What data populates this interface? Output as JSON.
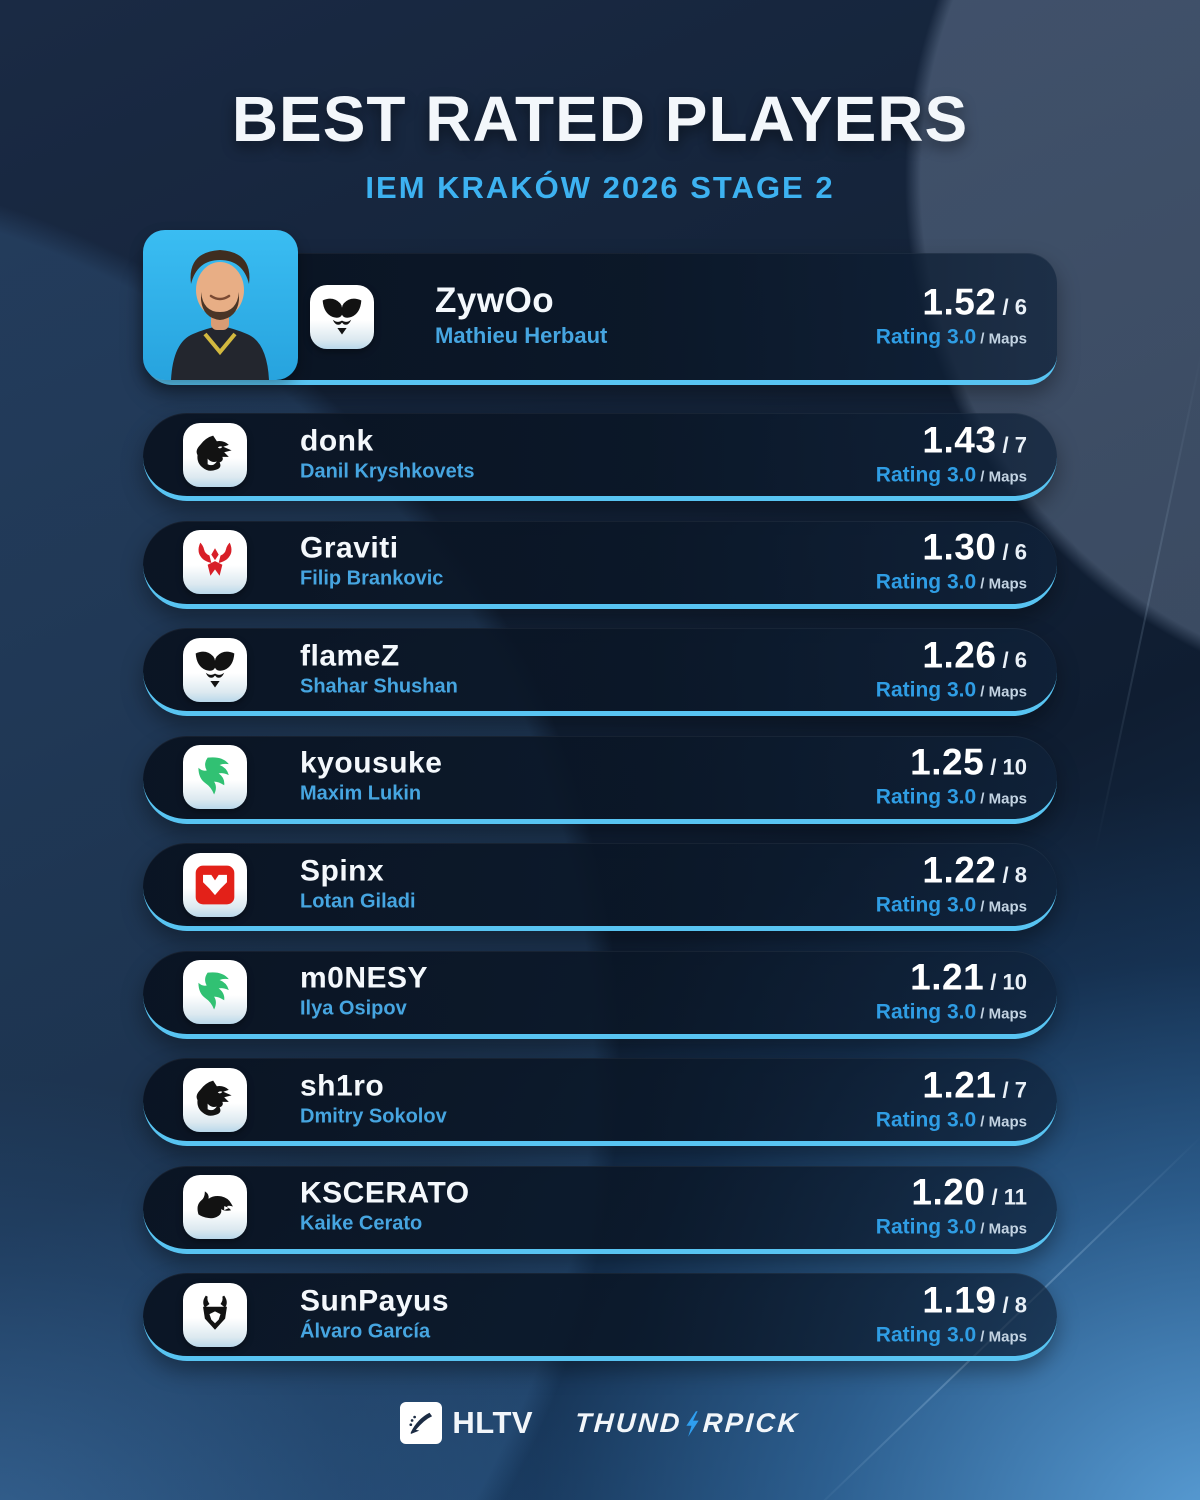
{
  "header": {
    "title": "BEST RATED PLAYERS",
    "subtitle": "IEM KRAKÓW 2026 STAGE 2"
  },
  "labels": {
    "rating_scale": "Rating 3.0",
    "maps_label": "Maps",
    "separator": "/"
  },
  "players": [
    {
      "featured": true,
      "nickname": "ZywOo",
      "realname": "Mathieu Herbaut",
      "rating": "1.52",
      "maps": "6",
      "team_icon": "vitality-logo"
    },
    {
      "featured": false,
      "nickname": "donk",
      "realname": "Danil Kryshkovets",
      "rating": "1.43",
      "maps": "7",
      "team_icon": "spirit-logo"
    },
    {
      "featured": false,
      "nickname": "Graviti",
      "realname": "Filip Brankovic",
      "rating": "1.30",
      "maps": "6",
      "team_icon": "red-demon-logo"
    },
    {
      "featured": false,
      "nickname": "flameZ",
      "realname": "Shahar Shushan",
      "rating": "1.26",
      "maps": "6",
      "team_icon": "vitality-logo"
    },
    {
      "featured": false,
      "nickname": "kyousuke",
      "realname": "Maxim Lukin",
      "rating": "1.25",
      "maps": "10",
      "team_icon": "falcons-logo"
    },
    {
      "featured": false,
      "nickname": "Spinx",
      "realname": "Lotan Giladi",
      "rating": "1.22",
      "maps": "8",
      "team_icon": "mouz-logo"
    },
    {
      "featured": false,
      "nickname": "m0NESY",
      "realname": "Ilya Osipov",
      "rating": "1.21",
      "maps": "10",
      "team_icon": "falcons-logo"
    },
    {
      "featured": false,
      "nickname": "sh1ro",
      "realname": "Dmitry Sokolov",
      "rating": "1.21",
      "maps": "7",
      "team_icon": "spirit-logo"
    },
    {
      "featured": false,
      "nickname": "KSCERATO",
      "realname": "Kaike Cerato",
      "rating": "1.20",
      "maps": "11",
      "team_icon": "furia-logo"
    },
    {
      "featured": false,
      "nickname": "SunPayus",
      "realname": "Álvaro García",
      "rating": "1.19",
      "maps": "8",
      "team_icon": "g2-logo"
    }
  ],
  "footer": {
    "hltv_label": "HLTV",
    "thunderpick_part1": "THUND",
    "thunderpick_part2": "RPICK",
    "thunderpick_full": "THUNDERPICK"
  },
  "colors": {
    "subtitle_blue": "#3db2f1",
    "realname_blue": "#46a5e0",
    "rating_label_blue": "#2f9de4",
    "row_underline_cyan": "#58c4f2",
    "photo_background_blue": "#2fb0e8",
    "falcons_green": "#31c173",
    "mouz_red": "#e32119",
    "demon_red": "#d81f28",
    "background_navy": "#0f1d31",
    "background_bright_blue": "#3c87c4"
  },
  "chart_data": {
    "type": "table",
    "title": "BEST RATED PLAYERS",
    "subtitle": "IEM KRAKÓW 2026 STAGE 2",
    "columns": [
      "player",
      "real_name",
      "rating",
      "maps"
    ],
    "rows": [
      [
        "ZywOo",
        "Mathieu Herbaut",
        1.52,
        6
      ],
      [
        "donk",
        "Danil Kryshkovets",
        1.43,
        7
      ],
      [
        "Graviti",
        "Filip Brankovic",
        1.3,
        6
      ],
      [
        "flameZ",
        "Shahar Shushan",
        1.26,
        6
      ],
      [
        "kyousuke",
        "Maxim Lukin",
        1.25,
        10
      ],
      [
        "Spinx",
        "Lotan Giladi",
        1.22,
        8
      ],
      [
        "m0NESY",
        "Ilya Osipov",
        1.21,
        10
      ],
      [
        "sh1ro",
        "Dmitry Sokolov",
        1.21,
        7
      ],
      [
        "KSCERATO",
        "Kaike Cerato",
        1.2,
        11
      ],
      [
        "SunPayus",
        "Álvaro García",
        1.19,
        8
      ]
    ],
    "rating_scale_max": 3.0
  }
}
